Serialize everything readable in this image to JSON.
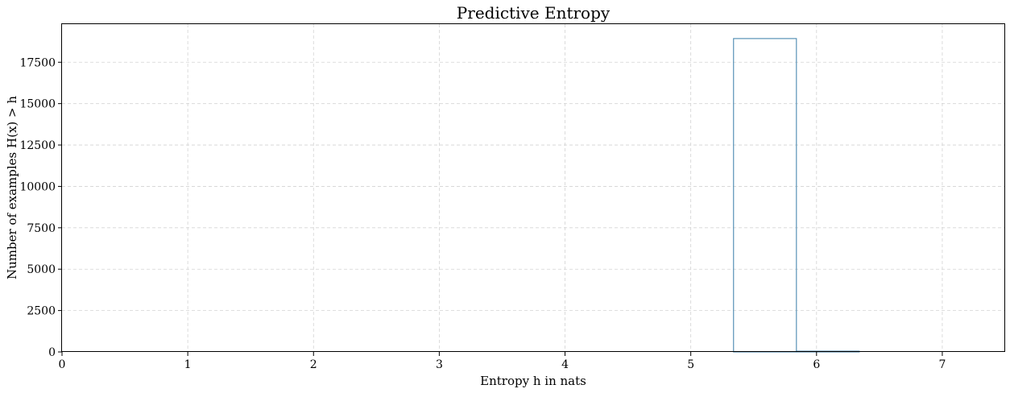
{
  "chart_data": {
    "type": "histogram",
    "title": "Predictive Entropy",
    "xlabel": "Entropy h in nats",
    "ylabel": "Number of examples H(x) > h",
    "xlim": [
      0,
      7.5
    ],
    "ylim": [
      0,
      19800
    ],
    "xticks": [
      0,
      1,
      2,
      3,
      4,
      5,
      6,
      7
    ],
    "yticks": [
      0,
      2500,
      5000,
      7500,
      10000,
      12500,
      15000,
      17500
    ],
    "grid": true,
    "color": "#4a88b0",
    "bins": [
      {
        "x0": 5.34,
        "x1": 5.84,
        "value": 18930
      },
      {
        "x0": 5.84,
        "x1": 6.34,
        "value": 45
      }
    ]
  }
}
